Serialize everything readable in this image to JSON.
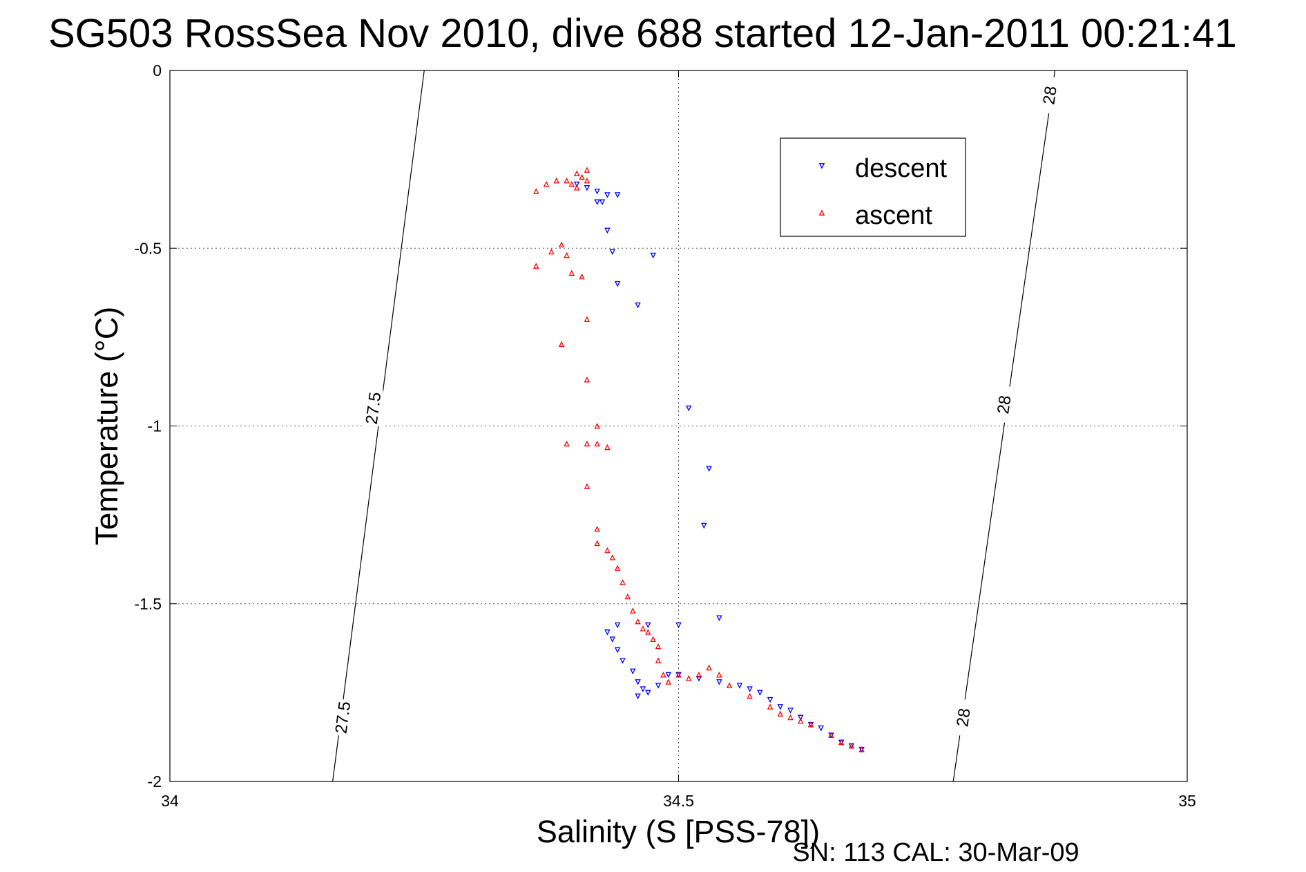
{
  "chart_data": {
    "type": "scatter",
    "title": "SG503 RossSea Nov 2010, dive 688 started 12-Jan-2011 00:21:41",
    "xlabel": "Salinity (S [PSS-78])",
    "ylabel": "Temperature (°C)",
    "footnote": "SN: 113  CAL: 30-Mar-09",
    "xlim": [
      34,
      35
    ],
    "ylim": [
      -2,
      0
    ],
    "xticks": [
      34,
      34.5,
      35
    ],
    "xtick_labels": [
      "34",
      "34.5",
      "35"
    ],
    "yticks": [
      0,
      -0.5,
      -1,
      -1.5,
      -2
    ],
    "ytick_labels": [
      "0",
      "-0.5",
      "-1",
      "-1.5",
      "-2"
    ],
    "grid": true,
    "legend_position": "top-right",
    "series": [
      {
        "name": "descent",
        "color": "#0000ff",
        "marker": "triangle-down",
        "points": [
          [
            34.4,
            -0.32
          ],
          [
            34.41,
            -0.33
          ],
          [
            34.42,
            -0.34
          ],
          [
            34.43,
            -0.35
          ],
          [
            34.44,
            -0.35
          ],
          [
            34.425,
            -0.37
          ],
          [
            34.42,
            -0.37
          ],
          [
            34.43,
            -0.45
          ],
          [
            34.435,
            -0.51
          ],
          [
            34.475,
            -0.52
          ],
          [
            34.44,
            -0.6
          ],
          [
            34.46,
            -0.66
          ],
          [
            34.51,
            -0.95
          ],
          [
            34.53,
            -1.12
          ],
          [
            34.525,
            -1.28
          ],
          [
            34.54,
            -1.54
          ],
          [
            34.43,
            -1.58
          ],
          [
            34.44,
            -1.56
          ],
          [
            34.47,
            -1.56
          ],
          [
            34.5,
            -1.56
          ],
          [
            34.435,
            -1.6
          ],
          [
            34.44,
            -1.63
          ],
          [
            34.445,
            -1.66
          ],
          [
            34.455,
            -1.69
          ],
          [
            34.46,
            -1.72
          ],
          [
            34.465,
            -1.74
          ],
          [
            34.47,
            -1.75
          ],
          [
            34.46,
            -1.76
          ],
          [
            34.48,
            -1.73
          ],
          [
            34.49,
            -1.7
          ],
          [
            34.5,
            -1.7
          ],
          [
            34.52,
            -1.71
          ],
          [
            34.54,
            -1.72
          ],
          [
            34.56,
            -1.73
          ],
          [
            34.57,
            -1.74
          ],
          [
            34.58,
            -1.75
          ],
          [
            34.59,
            -1.77
          ],
          [
            34.6,
            -1.79
          ],
          [
            34.61,
            -1.8
          ],
          [
            34.62,
            -1.82
          ],
          [
            34.63,
            -1.84
          ],
          [
            34.64,
            -1.85
          ],
          [
            34.65,
            -1.87
          ],
          [
            34.66,
            -1.89
          ],
          [
            34.67,
            -1.9
          ],
          [
            34.68,
            -1.91
          ]
        ]
      },
      {
        "name": "ascent",
        "color": "#ff0000",
        "marker": "triangle-up",
        "points": [
          [
            34.36,
            -0.34
          ],
          [
            34.37,
            -0.32
          ],
          [
            34.38,
            -0.31
          ],
          [
            34.39,
            -0.31
          ],
          [
            34.4,
            -0.29
          ],
          [
            34.405,
            -0.3
          ],
          [
            34.41,
            -0.31
          ],
          [
            34.4,
            -0.33
          ],
          [
            34.41,
            -0.28
          ],
          [
            34.395,
            -0.32
          ],
          [
            34.385,
            -0.49
          ],
          [
            34.39,
            -0.52
          ],
          [
            34.375,
            -0.51
          ],
          [
            34.36,
            -0.55
          ],
          [
            34.395,
            -0.57
          ],
          [
            34.405,
            -0.58
          ],
          [
            34.41,
            -0.7
          ],
          [
            34.385,
            -0.77
          ],
          [
            34.41,
            -0.87
          ],
          [
            34.42,
            -1.0
          ],
          [
            34.41,
            -1.05
          ],
          [
            34.42,
            -1.05
          ],
          [
            34.43,
            -1.06
          ],
          [
            34.39,
            -1.05
          ],
          [
            34.41,
            -1.17
          ],
          [
            34.42,
            -1.29
          ],
          [
            34.42,
            -1.33
          ],
          [
            34.43,
            -1.35
          ],
          [
            34.435,
            -1.37
          ],
          [
            34.44,
            -1.4
          ],
          [
            34.445,
            -1.44
          ],
          [
            34.45,
            -1.48
          ],
          [
            34.455,
            -1.52
          ],
          [
            34.46,
            -1.55
          ],
          [
            34.465,
            -1.57
          ],
          [
            34.47,
            -1.58
          ],
          [
            34.475,
            -1.6
          ],
          [
            34.48,
            -1.62
          ],
          [
            34.48,
            -1.66
          ],
          [
            34.485,
            -1.7
          ],
          [
            34.49,
            -1.72
          ],
          [
            34.5,
            -1.7
          ],
          [
            34.51,
            -1.71
          ],
          [
            34.52,
            -1.7
          ],
          [
            34.53,
            -1.68
          ],
          [
            34.54,
            -1.7
          ],
          [
            34.55,
            -1.73
          ],
          [
            34.57,
            -1.76
          ],
          [
            34.59,
            -1.79
          ],
          [
            34.6,
            -1.81
          ],
          [
            34.61,
            -1.82
          ],
          [
            34.62,
            -1.83
          ],
          [
            34.63,
            -1.84
          ],
          [
            34.65,
            -1.87
          ],
          [
            34.66,
            -1.89
          ],
          [
            34.67,
            -1.9
          ],
          [
            34.68,
            -1.91
          ]
        ]
      }
    ],
    "contours": [
      {
        "label": "27.5",
        "points": [
          [
            34.25,
            0
          ],
          [
            34.16,
            -2
          ]
        ],
        "label_positions": [
          [
            34.2,
            -0.95
          ],
          [
            34.17,
            -1.82
          ]
        ]
      },
      {
        "label": "28",
        "points": [
          [
            34.87,
            0
          ],
          [
            34.77,
            -2
          ]
        ],
        "label_positions": [
          [
            34.865,
            -0.07
          ],
          [
            34.82,
            -0.94
          ],
          [
            34.78,
            -1.82
          ]
        ]
      }
    ]
  }
}
